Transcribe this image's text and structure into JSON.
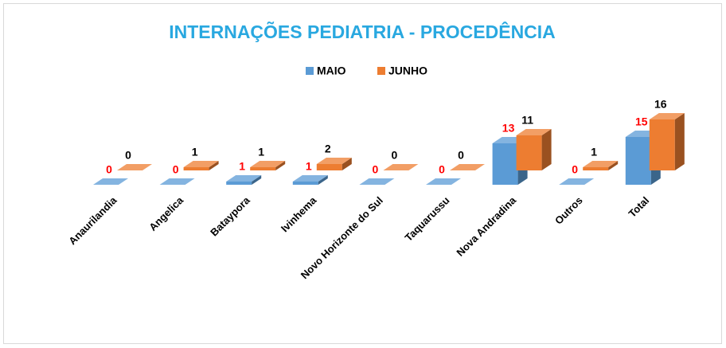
{
  "chart_data": {
    "type": "bar3d",
    "title": "INTERNAÇÕES PEDIATRIA - PROCEDÊNCIA",
    "categories": [
      "Anaurilandia",
      "Angelica",
      "Bataypora",
      "Ivinhema",
      "Novo Horizonte do Sul",
      "Taquarussu",
      "Nova Andradina",
      "Outros",
      "Total"
    ],
    "series": [
      {
        "name": "MAIO",
        "color": "#5b9bd5",
        "label_color": "#ff0000",
        "values": [
          0,
          0,
          1,
          1,
          0,
          0,
          13,
          0,
          15
        ]
      },
      {
        "name": "JUNHO",
        "color": "#ed7d31",
        "label_color": "#000000",
        "values": [
          0,
          1,
          1,
          2,
          0,
          0,
          11,
          1,
          16
        ]
      }
    ],
    "legend": "top"
  }
}
